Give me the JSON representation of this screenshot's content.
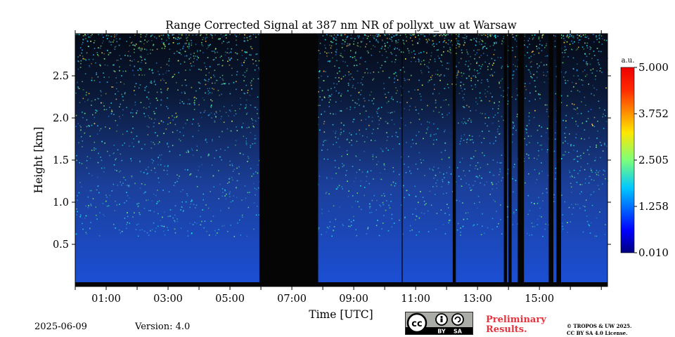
{
  "chart_data": {
    "type": "heatmap",
    "title": "Range Corrected Signal at 387 nm NR of pollyxt_uw at Warsaw",
    "xlabel": "Time [UTC]",
    "ylabel": "Height [km]",
    "x_ticks": [
      "01:00",
      "03:00",
      "05:00",
      "07:00",
      "09:00",
      "11:00",
      "13:00",
      "15:00"
    ],
    "x_tick_hours": [
      1,
      3,
      5,
      7,
      9,
      11,
      13,
      15
    ],
    "xlim_hours": [
      0,
      17.2
    ],
    "y_ticks": [
      "0.5",
      "1.0",
      "1.5",
      "2.0",
      "2.5"
    ],
    "y_tick_values": [
      0.5,
      1.0,
      1.5,
      2.0,
      2.5
    ],
    "ylim": [
      0,
      3.0
    ],
    "colorbar": {
      "label": "a.u.",
      "ticks": [
        "0.010",
        "1.258",
        "2.505",
        "3.752",
        "5.000"
      ],
      "tick_values": [
        0.01,
        1.258,
        2.505,
        3.752,
        5.0
      ],
      "range": [
        0.01,
        5.0
      ],
      "colormap": "jet"
    },
    "no_data_periods_hours": [
      [
        5.95,
        7.85
      ],
      [
        10.55,
        10.58
      ],
      [
        12.2,
        12.3
      ],
      [
        13.85,
        13.95
      ],
      [
        14.0,
        14.1
      ],
      [
        14.3,
        14.5
      ],
      [
        15.3,
        15.45
      ],
      [
        15.55,
        15.7
      ]
    ]
  },
  "footer": {
    "date": "2025-06-09",
    "version": "Version: 4.0",
    "preliminary_line1": "Preliminary",
    "preliminary_line2": "Results.",
    "copyright_line1": "© TROPOS & UW 2025.",
    "copyright_line2": "CC BY SA 4.0 License.",
    "cc_text": "cc",
    "by_text": "BY",
    "sa_text": "SA"
  },
  "colors": {
    "accent_red": "#e8323c",
    "low_signal": "#1a4fd8",
    "background": "#ffffff"
  }
}
